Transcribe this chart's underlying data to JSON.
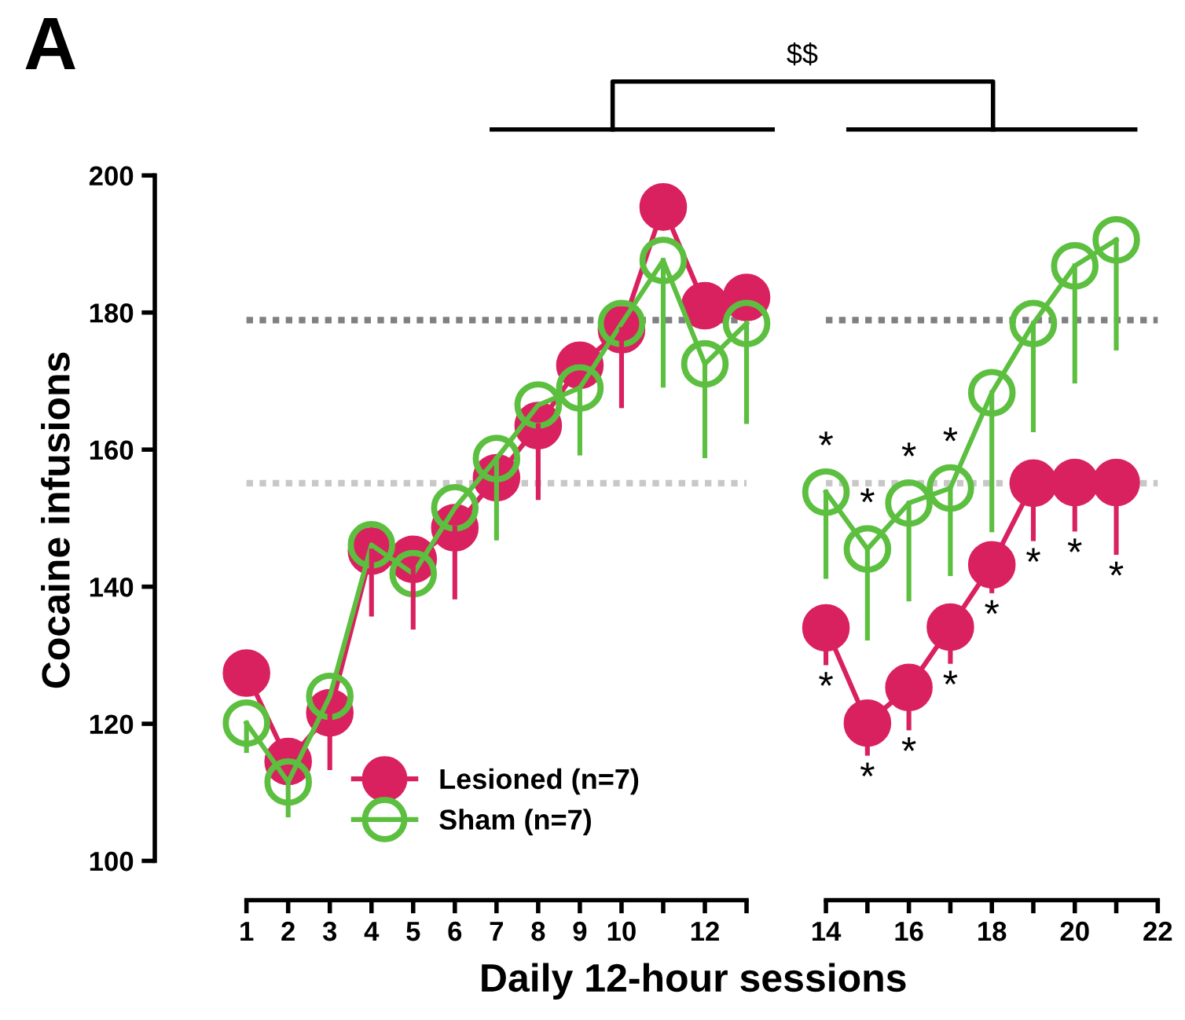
{
  "chart_data": [
    {
      "type": "line",
      "title": "A",
      "ylabel": "Cocaine infusions",
      "xlabel": "Daily 12-hour sessions",
      "x": [
        1,
        2,
        3,
        4,
        5,
        6,
        7,
        8,
        9,
        10,
        11,
        12,
        13
      ],
      "xlim": [
        1,
        13
      ],
      "xticks": [
        1,
        2,
        3,
        4,
        5,
        6,
        7,
        8,
        9,
        10,
        12
      ],
      "ylim": [
        100,
        200
      ],
      "yticks": [
        100,
        120,
        140,
        160,
        180,
        200
      ],
      "series": [
        {
          "name": "Lesioned (n=7)",
          "color": "#d9215f",
          "marker": "circle",
          "values": [
            127.4,
            114.5,
            121.6,
            145.2,
            144.0,
            148.6,
            155.9,
            163.5,
            172.3,
            177.5,
            195.4,
            181.0,
            182.2
          ],
          "errors": [
            null,
            null,
            [
              113.6,
              121.6
            ],
            [
              136.0,
              145.2
            ],
            [
              134.1,
              144.0
            ],
            [
              138.5,
              148.6
            ],
            null,
            [
              153.0,
              163.5
            ],
            null,
            [
              166.4,
              177.5
            ],
            null,
            null,
            null
          ]
        },
        {
          "name": "Sham (n=7)",
          "color": "#5cbf3f",
          "marker": "circle",
          "values": [
            120.1,
            111.5,
            124.0,
            146.1,
            141.9,
            151.5,
            158.7,
            166.5,
            169.0,
            178.4,
            187.6,
            172.5,
            178.4
          ],
          "errors": [
            [
              116.1,
              120.1
            ],
            [
              106.7,
              111.5
            ],
            null,
            null,
            null,
            null,
            [
              147.1,
              158.7
            ],
            null,
            [
              159.5,
              169.0
            ],
            null,
            [
              169.4,
              187.6
            ],
            [
              159.1,
              172.5
            ],
            [
              164.1,
              178.4
            ]
          ]
        }
      ],
      "ref_lines": [
        {
          "axis": "y",
          "value": 178.9,
          "color": "#808082",
          "line_style": "dotted"
        },
        {
          "axis": "y",
          "value": 155.1,
          "color": "#c8c8c8",
          "line_style": "dotted"
        }
      ],
      "annotations": [
        "$$"
      ],
      "legend": "bottom",
      "grid": false
    },
    {
      "type": "line",
      "tick_labels": "x",
      "x": [
        14,
        15,
        16,
        17,
        18,
        19,
        20,
        21
      ],
      "xlim": [
        14,
        22
      ],
      "xticks": [
        14,
        16,
        18,
        20,
        22
      ],
      "ylim": [
        100,
        200
      ],
      "series": [
        {
          "color": "#d9215f",
          "marker": "circle",
          "values": [
            134.0,
            120.1,
            125.3,
            134.1,
            143.2,
            155.1,
            155.2,
            155.2
          ],
          "errors": [
            [
              128.9,
              134.0
            ],
            [
              115.7,
              120.1
            ],
            [
              119.4,
              125.3
            ],
            [
              129.1,
              134.1
            ],
            [
              139.4,
              143.2
            ],
            [
              147.0,
              155.1
            ],
            [
              148.4,
              155.2
            ],
            [
              145.0,
              155.2
            ]
          ]
        },
        {
          "color": "#5cbf3f",
          "marker": "circle",
          "values": [
            153.8,
            145.5,
            152.2,
            154.4,
            168.3,
            178.4,
            186.8,
            190.6
          ],
          "errors": [
            [
              141.5,
              153.8
            ],
            [
              132.5,
              145.5
            ],
            [
              138.2,
              152.2
            ],
            [
              141.9,
              154.4
            ],
            [
              148.3,
              168.3
            ],
            [
              162.9,
              178.4
            ],
            [
              170.0,
              186.8
            ],
            [
              174.8,
              190.6
            ]
          ]
        }
      ],
      "ref_lines": [
        {
          "axis": "y",
          "value": 178.9,
          "color": "#808082",
          "line_style": "dotted"
        },
        {
          "axis": "y",
          "value": 155.1,
          "color": "#c8c8c8",
          "line_style": "dotted"
        }
      ],
      "annotations": [
        {
          "text": "*",
          "x": 14,
          "y": 153.8
        },
        {
          "text": "*",
          "x": 15,
          "y": 145.5
        },
        {
          "text": "*",
          "x": 16,
          "y": 152.2
        },
        {
          "text": "*",
          "x": 17,
          "y": 154.4
        },
        {
          "text": "*",
          "x": 14,
          "y": 128.9
        },
        {
          "text": "*",
          "x": 15,
          "y": 115.7
        },
        {
          "text": "*",
          "x": 16,
          "y": 119.4
        },
        {
          "text": "*",
          "x": 17,
          "y": 129.1
        },
        {
          "text": "*",
          "x": 18,
          "y": 139.4
        },
        {
          "text": "*",
          "x": 19,
          "y": 147.0
        },
        {
          "text": "*",
          "x": 20,
          "y": 148.4
        },
        {
          "text": "*",
          "x": 21,
          "y": 145.0
        }
      ],
      "legend": false,
      "grid": false
    }
  ]
}
